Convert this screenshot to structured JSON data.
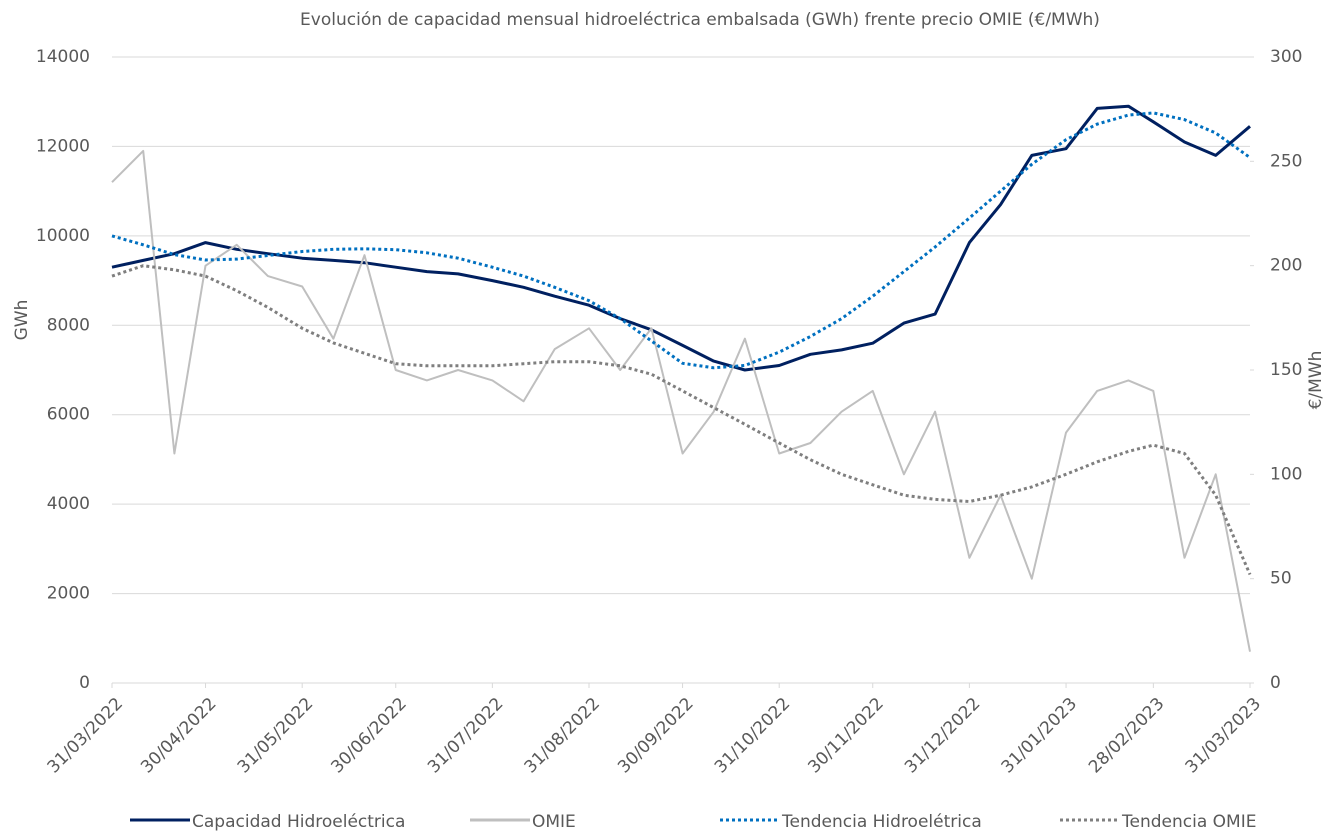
{
  "chart_data": {
    "type": "line",
    "title": "Evolución de capacidad mensual hidroeléctrica embalsada (GWh) frente precio OMIE (€/MWh)",
    "y_label": "GWh",
    "y2_label": "€/MWh",
    "x": [
      "31/03/2022",
      "10/04/2022",
      "20/04/2022",
      "30/04/2022",
      "10/05/2022",
      "20/05/2022",
      "31/05/2022",
      "10/06/2022",
      "20/06/2022",
      "30/06/2022",
      "10/07/2022",
      "20/07/2022",
      "31/07/2022",
      "10/08/2022",
      "20/08/2022",
      "31/08/2022",
      "10/09/2022",
      "20/09/2022",
      "30/09/2022",
      "10/10/2022",
      "20/10/2022",
      "31/10/2022",
      "10/11/2022",
      "20/11/2022",
      "30/11/2022",
      "10/12/2022",
      "20/12/2022",
      "31/12/2022",
      "10/01/2023",
      "20/01/2023",
      "31/01/2023",
      "10/02/2023",
      "20/02/2023",
      "28/02/2023",
      "10/03/2023",
      "20/03/2023",
      "31/03/2023"
    ],
    "series": [
      {
        "name": "Capacidad Hidroeléctrica",
        "color": "#002060",
        "dash": "solid",
        "axis": "y",
        "values": [
          9300,
          9450,
          9600,
          9850,
          9700,
          9600,
          9500,
          9450,
          9400,
          9300,
          9200,
          9150,
          9000,
          8850,
          8650,
          8450,
          8150,
          7900,
          7550,
          7200,
          7000,
          7100,
          7350,
          7450,
          7600,
          8050,
          8250,
          9850,
          10700,
          11800,
          11950,
          12850,
          12900,
          12550,
          12100,
          11800,
          12450
        ]
      },
      {
        "name": "OMIE",
        "color": "#bfbfbf",
        "dash": "solid",
        "axis": "y2",
        "values": [
          240,
          255,
          110,
          200,
          210,
          195,
          190,
          165,
          205,
          150,
          145,
          150,
          145,
          135,
          160,
          170,
          150,
          170,
          110,
          130,
          165,
          110,
          115,
          130,
          140,
          100,
          130,
          60,
          90,
          50,
          120,
          140,
          145,
          140,
          60,
          100,
          15
        ]
      },
      {
        "name": "Tendencia Hidroelétrica",
        "color": "#0070c0",
        "dash": "dotted",
        "axis": "y",
        "values": [
          10000,
          9800,
          9580,
          9460,
          9480,
          9560,
          9650,
          9700,
          9710,
          9690,
          9620,
          9500,
          9300,
          9100,
          8850,
          8550,
          8150,
          7650,
          7150,
          7050,
          7100,
          7400,
          7750,
          8150,
          8650,
          9200,
          9750,
          10400,
          11000,
          11600,
          12150,
          12500,
          12700,
          12750,
          12600,
          12300,
          11750
        ]
      },
      {
        "name": "Tendencia OMIE",
        "color": "#7f7f7f",
        "dash": "dotted",
        "axis": "y2",
        "values": [
          195,
          200,
          198,
          195,
          188,
          180,
          170,
          163,
          158,
          153,
          152,
          152,
          152,
          153,
          154,
          154,
          152,
          148,
          140,
          132,
          124,
          115,
          107,
          100,
          95,
          90,
          88,
          87,
          90,
          94,
          100,
          106,
          111,
          114,
          110,
          90,
          52
        ]
      }
    ],
    "xticks": [
      "31/03/2022",
      "30/04/2022",
      "31/05/2022",
      "30/06/2022",
      "31/07/2022",
      "31/08/2022",
      "30/09/2022",
      "31/10/2022",
      "30/11/2022",
      "31/12/2022",
      "31/01/2023",
      "28/02/2023",
      "31/03/2023"
    ],
    "ylim": [
      0,
      14000
    ],
    "yticks": [
      0,
      2000,
      4000,
      6000,
      8000,
      10000,
      12000,
      14000
    ],
    "y2lim": [
      0,
      300
    ],
    "y2ticks": [
      0,
      50,
      100,
      150,
      200,
      250,
      300
    ],
    "grid": true,
    "legend": "bottom"
  }
}
